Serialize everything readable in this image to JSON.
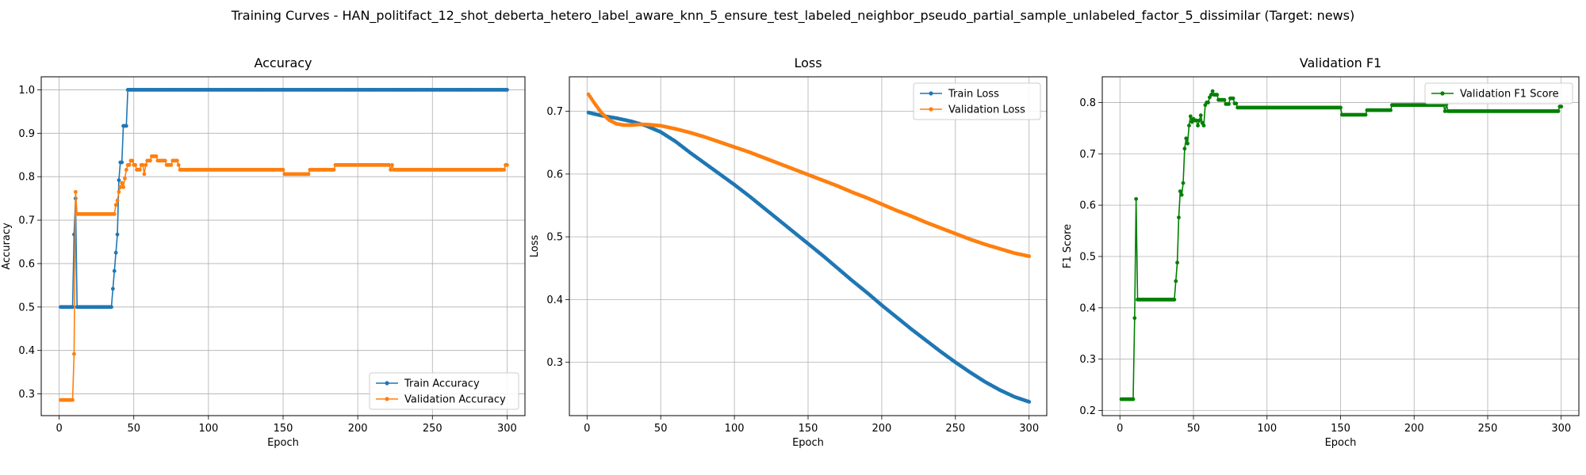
{
  "figure_title": "Training Curves - HAN_politifact_12_shot_deberta_hetero_label_aware_knn_5_ensure_test_labeled_neighbor_pseudo_partial_sample_unlabeled_factor_5_dissimilar (Target: news)",
  "colors": {
    "blue": "#1f77b4",
    "orange": "#ff7f0e",
    "green": "#008000",
    "grid": "#b0b0b0"
  },
  "chart_data": [
    {
      "type": "line",
      "title": "Accuracy",
      "xlabel": "Epoch",
      "ylabel": "Accuracy",
      "xlim": [
        -12,
        312
      ],
      "ylim": [
        0.25,
        1.03
      ],
      "xticks": [
        0,
        50,
        100,
        150,
        200,
        250,
        300
      ],
      "yticks": [
        0.3,
        0.4,
        0.5,
        0.6,
        0.7,
        0.8,
        0.9,
        1.0
      ],
      "ytick_labels": [
        "0.3",
        "0.4",
        "0.5",
        "0.6",
        "0.7",
        "0.8",
        "0.9",
        "1.0"
      ],
      "grid": true,
      "legend_position": "lower-right",
      "series": [
        {
          "name": "Train Accuracy",
          "color": "#1f77b4",
          "points": [
            [
              1,
              0.5
            ],
            [
              9,
              0.5
            ],
            [
              10,
              0.667
            ],
            [
              11,
              0.75
            ],
            [
              12,
              0.5
            ],
            [
              35,
              0.5
            ],
            [
              36,
              0.542
            ],
            [
              37,
              0.583
            ],
            [
              38,
              0.625
            ],
            [
              39,
              0.667
            ],
            [
              40,
              0.792
            ],
            [
              41,
              0.833
            ],
            [
              42,
              0.833
            ],
            [
              43,
              0.917
            ],
            [
              44,
              0.917
            ],
            [
              45,
              0.917
            ],
            [
              46,
              1.0
            ],
            [
              300,
              1.0
            ]
          ]
        },
        {
          "name": "Validation Accuracy",
          "color": "#ff7f0e",
          "points": [
            [
              1,
              0.286
            ],
            [
              9,
              0.286
            ],
            [
              10,
              0.392
            ],
            [
              11,
              0.765
            ],
            [
              12,
              0.714
            ],
            [
              37,
              0.714
            ],
            [
              38,
              0.735
            ],
            [
              39,
              0.745
            ],
            [
              40,
              0.765
            ],
            [
              41,
              0.776
            ],
            [
              42,
              0.786
            ],
            [
              43,
              0.776
            ],
            [
              44,
              0.796
            ],
            [
              45,
              0.816
            ],
            [
              46,
              0.827
            ],
            [
              47,
              0.827
            ],
            [
              48,
              0.837
            ],
            [
              49,
              0.837
            ],
            [
              50,
              0.827
            ],
            [
              51,
              0.827
            ],
            [
              52,
              0.816
            ],
            [
              53,
              0.816
            ],
            [
              54,
              0.816
            ],
            [
              55,
              0.827
            ],
            [
              56,
              0.827
            ],
            [
              57,
              0.806
            ],
            [
              58,
              0.827
            ],
            [
              59,
              0.837
            ],
            [
              60,
              0.837
            ],
            [
              61,
              0.837
            ],
            [
              62,
              0.847
            ],
            [
              63,
              0.847
            ],
            [
              64,
              0.847
            ],
            [
              65,
              0.847
            ],
            [
              66,
              0.837
            ],
            [
              67,
              0.837
            ],
            [
              68,
              0.837
            ],
            [
              69,
              0.837
            ],
            [
              70,
              0.837
            ],
            [
              71,
              0.837
            ],
            [
              72,
              0.827
            ],
            [
              73,
              0.827
            ],
            [
              74,
              0.827
            ],
            [
              75,
              0.827
            ],
            [
              76,
              0.837
            ],
            [
              77,
              0.837
            ],
            [
              78,
              0.837
            ],
            [
              79,
              0.837
            ],
            [
              80,
              0.827
            ],
            [
              81,
              0.816
            ],
            [
              150,
              0.816
            ],
            [
              151,
              0.806
            ],
            [
              167,
              0.806
            ],
            [
              168,
              0.816
            ],
            [
              184,
              0.816
            ],
            [
              185,
              0.827
            ],
            [
              221,
              0.827
            ],
            [
              222,
              0.816
            ],
            [
              223,
              0.827
            ],
            [
              224,
              0.816
            ],
            [
              298,
              0.816
            ],
            [
              299,
              0.827
            ],
            [
              300,
              0.827
            ]
          ]
        }
      ]
    },
    {
      "type": "line",
      "title": "Loss",
      "xlabel": "Epoch",
      "ylabel": "Loss",
      "xlim": [
        -12,
        312
      ],
      "ylim": [
        0.215,
        0.755
      ],
      "xticks": [
        0,
        50,
        100,
        150,
        200,
        250,
        300
      ],
      "yticks": [
        0.3,
        0.4,
        0.5,
        0.6,
        0.7
      ],
      "ytick_labels": [
        "0.3",
        "0.4",
        "0.5",
        "0.6",
        "0.7"
      ],
      "grid": true,
      "legend_position": "upper-right",
      "series": [
        {
          "name": "Train Loss",
          "color": "#1f77b4",
          "points": [
            [
              1,
              0.698
            ],
            [
              10,
              0.693
            ],
            [
              20,
              0.689
            ],
            [
              30,
              0.684
            ],
            [
              40,
              0.677
            ],
            [
              50,
              0.667
            ],
            [
              60,
              0.652
            ],
            [
              70,
              0.634
            ],
            [
              80,
              0.617
            ],
            [
              90,
              0.6
            ],
            [
              100,
              0.583
            ],
            [
              110,
              0.565
            ],
            [
              120,
              0.546
            ],
            [
              130,
              0.527
            ],
            [
              140,
              0.508
            ],
            [
              150,
              0.489
            ],
            [
              160,
              0.47
            ],
            [
              170,
              0.45
            ],
            [
              180,
              0.43
            ],
            [
              190,
              0.411
            ],
            [
              200,
              0.391
            ],
            [
              210,
              0.372
            ],
            [
              220,
              0.353
            ],
            [
              230,
              0.335
            ],
            [
              240,
              0.317
            ],
            [
              250,
              0.3
            ],
            [
              260,
              0.284
            ],
            [
              270,
              0.269
            ],
            [
              280,
              0.256
            ],
            [
              290,
              0.245
            ],
            [
              300,
              0.237
            ]
          ]
        },
        {
          "name": "Validation Loss",
          "color": "#ff7f0e",
          "points": [
            [
              1,
              0.727
            ],
            [
              5,
              0.713
            ],
            [
              10,
              0.697
            ],
            [
              15,
              0.686
            ],
            [
              20,
              0.68
            ],
            [
              25,
              0.678
            ],
            [
              30,
              0.678
            ],
            [
              35,
              0.679
            ],
            [
              40,
              0.679
            ],
            [
              50,
              0.677
            ],
            [
              60,
              0.672
            ],
            [
              70,
              0.666
            ],
            [
              80,
              0.659
            ],
            [
              90,
              0.651
            ],
            [
              100,
              0.643
            ],
            [
              110,
              0.635
            ],
            [
              120,
              0.626
            ],
            [
              130,
              0.617
            ],
            [
              140,
              0.608
            ],
            [
              150,
              0.599
            ],
            [
              160,
              0.59
            ],
            [
              170,
              0.581
            ],
            [
              180,
              0.571
            ],
            [
              190,
              0.562
            ],
            [
              200,
              0.552
            ],
            [
              210,
              0.542
            ],
            [
              220,
              0.533
            ],
            [
              230,
              0.523
            ],
            [
              240,
              0.514
            ],
            [
              250,
              0.505
            ],
            [
              260,
              0.496
            ],
            [
              270,
              0.488
            ],
            [
              280,
              0.481
            ],
            [
              290,
              0.474
            ],
            [
              300,
              0.469
            ]
          ]
        }
      ]
    },
    {
      "type": "line",
      "title": "Validation F1",
      "xlabel": "Epoch",
      "ylabel": "F1 Score",
      "xlim": [
        -12,
        312
      ],
      "ylim": [
        0.19,
        0.85
      ],
      "xticks": [
        0,
        50,
        100,
        150,
        200,
        250,
        300
      ],
      "yticks": [
        0.2,
        0.3,
        0.4,
        0.5,
        0.6,
        0.7,
        0.8
      ],
      "ytick_labels": [
        "0.2",
        "0.3",
        "0.4",
        "0.5",
        "0.6",
        "0.7",
        "0.8"
      ],
      "grid": true,
      "legend_position": "upper-right",
      "series": [
        {
          "name": "Validation F1 Score",
          "color": "#008000",
          "points": [
            [
              1,
              0.222
            ],
            [
              9,
              0.222
            ],
            [
              10,
              0.38
            ],
            [
              11,
              0.612
            ],
            [
              12,
              0.416
            ],
            [
              37,
              0.416
            ],
            [
              38,
              0.452
            ],
            [
              39,
              0.488
            ],
            [
              40,
              0.576
            ],
            [
              41,
              0.627
            ],
            [
              42,
              0.62
            ],
            [
              43,
              0.643
            ],
            [
              44,
              0.71
            ],
            [
              45,
              0.73
            ],
            [
              46,
              0.72
            ],
            [
              47,
              0.755
            ],
            [
              48,
              0.773
            ],
            [
              49,
              0.762
            ],
            [
              50,
              0.768
            ],
            [
              51,
              0.765
            ],
            [
              52,
              0.765
            ],
            [
              53,
              0.755
            ],
            [
              54,
              0.765
            ],
            [
              55,
              0.775
            ],
            [
              56,
              0.76
            ],
            [
              57,
              0.755
            ],
            [
              58,
              0.795
            ],
            [
              59,
              0.8
            ],
            [
              60,
              0.8
            ],
            [
              61,
              0.81
            ],
            [
              62,
              0.815
            ],
            [
              63,
              0.822
            ],
            [
              64,
              0.815
            ],
            [
              65,
              0.815
            ],
            [
              66,
              0.815
            ],
            [
              67,
              0.805
            ],
            [
              68,
              0.805
            ],
            [
              69,
              0.805
            ],
            [
              70,
              0.805
            ],
            [
              71,
              0.805
            ],
            [
              72,
              0.797
            ],
            [
              73,
              0.797
            ],
            [
              74,
              0.797
            ],
            [
              75,
              0.808
            ],
            [
              76,
              0.808
            ],
            [
              77,
              0.808
            ],
            [
              78,
              0.798
            ],
            [
              79,
              0.798
            ],
            [
              80,
              0.79
            ],
            [
              81,
              0.79
            ],
            [
              150,
              0.79
            ],
            [
              151,
              0.776
            ],
            [
              167,
              0.776
            ],
            [
              168,
              0.785
            ],
            [
              184,
              0.785
            ],
            [
              185,
              0.795
            ],
            [
              220,
              0.795
            ],
            [
              221,
              0.783
            ],
            [
              222,
              0.797
            ],
            [
              223,
              0.783
            ],
            [
              298,
              0.783
            ],
            [
              299,
              0.792
            ],
            [
              300,
              0.792
            ]
          ]
        }
      ]
    }
  ]
}
